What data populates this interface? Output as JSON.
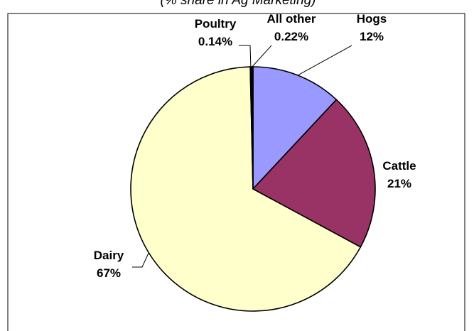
{
  "chart_data": {
    "type": "pie",
    "subtitle": "(% share in Ag Marketing)",
    "slices": [
      {
        "name": "Hogs",
        "value": 12,
        "value_label": "12%",
        "color": "#9999ff"
      },
      {
        "name": "Cattle",
        "value": 21,
        "value_label": "21%",
        "color": "#993366"
      },
      {
        "name": "Dairy",
        "value": 67,
        "value_label": "67%",
        "color": "#ffffcc"
      },
      {
        "name": "Poultry",
        "value": 0.14,
        "value_label": "0.14%",
        "color": "#3a3a3a"
      },
      {
        "name": "All other",
        "value": 0.22,
        "value_label": "0.22%",
        "color": "#111111"
      }
    ],
    "legend": "none"
  }
}
